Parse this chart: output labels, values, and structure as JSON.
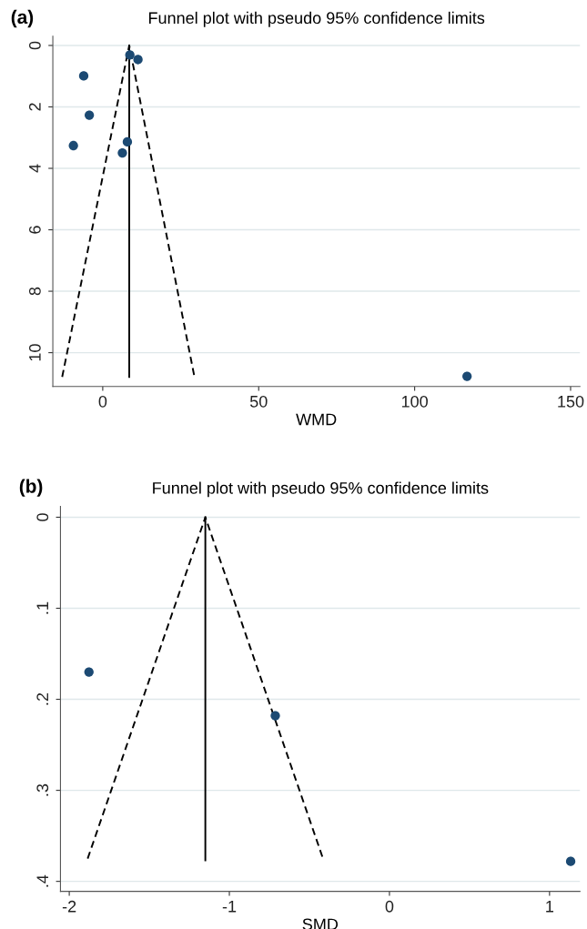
{
  "chart_data": [
    {
      "type": "scatter",
      "title": "Funnel plot with pseudo 95% confidence limits",
      "xlabel": "WMD",
      "annotations": [
        "(a)"
      ],
      "series": [
        {
          "color": "#1c4a73",
          "marker": "circle",
          "x": [
            8.7,
            11.3,
            -6.1,
            -4.3,
            -9.4,
            7.9,
            6.3,
            116.8
          ],
          "values": [
            0.31,
            0.46,
            0.99,
            2.27,
            3.26,
            3.14,
            3.5,
            10.77
          ]
        },
        {
          "type": "line",
          "color": "#000000",
          "line_style": "solid",
          "x": [
            8.5,
            8.5
          ],
          "values": [
            0,
            10.79
          ]
        },
        {
          "type": "line",
          "color": "#000000",
          "line_style": "dashed",
          "x": [
            -13.0,
            8.5,
            29.4
          ],
          "values": [
            10.79,
            0,
            10.79
          ]
        }
      ],
      "xlim": [
        -16,
        153
      ],
      "ylim": [
        11.1,
        -0.3
      ],
      "xticks": [
        0,
        50,
        100,
        150
      ],
      "yticks": [
        0,
        2,
        4,
        6,
        8,
        10
      ],
      "grid": "y"
    },
    {
      "type": "scatter",
      "title": "Funnel plot with pseudo 95% confidence limits",
      "xlabel": "SMD",
      "annotations": [
        "(b)"
      ],
      "series": [
        {
          "color": "#1c4a73",
          "marker": "circle",
          "x": [
            -1.877,
            -0.713,
            1.132
          ],
          "values": [
            0.17,
            0.218,
            0.378
          ]
        },
        {
          "type": "line",
          "color": "#000000",
          "line_style": "solid",
          "x": [
            -1.15,
            -1.15
          ],
          "values": [
            0,
            0.377
          ]
        },
        {
          "type": "line",
          "color": "#000000",
          "line_style": "dashed",
          "x": [
            -1.885,
            -1.15,
            -0.415
          ],
          "values": [
            0.375,
            0,
            0.375
          ]
        }
      ],
      "xlim": [
        -2.055,
        1.19
      ],
      "ylim": [
        0.411,
        -0.012
      ],
      "xticks": [
        -2,
        -1,
        0,
        1
      ],
      "yticks": [
        0,
        {
          "value": 0.1,
          "label": ".1"
        },
        {
          "value": 0.2,
          "label": ".2"
        },
        {
          "value": 0.3,
          "label": ".3"
        },
        {
          "value": 0.4,
          "label": ".4"
        }
      ],
      "grid": "y"
    }
  ]
}
